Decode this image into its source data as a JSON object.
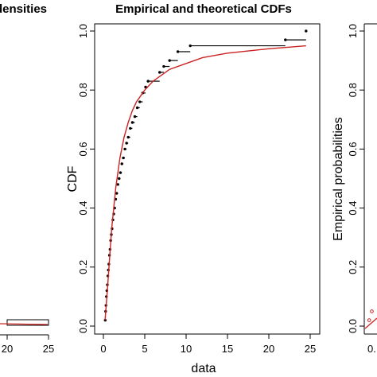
{
  "chart_data": [
    {
      "type": "histogram",
      "title": "densities",
      "xlabel": "",
      "ylabel": "",
      "xticks": [
        20,
        25
      ],
      "bars": [
        {
          "x0": 20,
          "x1": 25,
          "height": 1
        }
      ],
      "fitted_curve_color": "#cc2222"
    },
    {
      "type": "line",
      "title": "Empirical and theoretical CDFs",
      "xlabel": "data",
      "ylabel": "CDF",
      "xlim": [
        -0.9,
        25
      ],
      "ylim": [
        0,
        1
      ],
      "xticks": [
        0,
        5,
        10,
        15,
        20,
        25
      ],
      "yticks": [
        "0.0",
        "0.2",
        "0.4",
        "0.6",
        "0.8",
        "1.0"
      ],
      "grid": false,
      "empirical": {
        "color": "#000000",
        "x": [
          0.22,
          0.27,
          0.31,
          0.36,
          0.42,
          0.48,
          0.54,
          0.6,
          0.66,
          0.73,
          0.8,
          0.88,
          0.96,
          1.05,
          1.15,
          1.25,
          1.36,
          1.48,
          1.61,
          1.75,
          1.9,
          2.06,
          2.23,
          2.41,
          2.6,
          2.8,
          3.0,
          3.25,
          3.5,
          3.8,
          4.1,
          4.4,
          4.75,
          5.1,
          5.4,
          6.8,
          7.3,
          8.0,
          9.0,
          10.5,
          22.0,
          24.5
        ],
        "y": [
          0.02,
          0.05,
          0.07,
          0.1,
          0.12,
          0.14,
          0.17,
          0.19,
          0.21,
          0.24,
          0.26,
          0.29,
          0.31,
          0.33,
          0.36,
          0.38,
          0.4,
          0.43,
          0.45,
          0.48,
          0.5,
          0.52,
          0.55,
          0.57,
          0.6,
          0.62,
          0.64,
          0.67,
          0.69,
          0.71,
          0.74,
          0.76,
          0.79,
          0.81,
          0.83,
          0.86,
          0.88,
          0.9,
          0.93,
          0.95,
          0.97,
          1.0
        ]
      },
      "theoretical": {
        "color": "#cc2222",
        "x": [
          0.2,
          0.5,
          1.0,
          1.5,
          2.0,
          2.5,
          3.0,
          3.5,
          4.0,
          5.0,
          6.0,
          7.0,
          8.0,
          10.0,
          12.0,
          15.0,
          20.0,
          24.5
        ],
        "y": [
          0.02,
          0.13,
          0.33,
          0.47,
          0.57,
          0.64,
          0.69,
          0.73,
          0.76,
          0.8,
          0.83,
          0.85,
          0.87,
          0.89,
          0.91,
          0.925,
          0.94,
          0.95
        ]
      }
    },
    {
      "type": "scatter",
      "title": "",
      "xlabel": "",
      "ylabel": "Empirical probabilities",
      "ylim": [
        0,
        1
      ],
      "yticks": [
        "0.0",
        "0.2",
        "0.4",
        "0.6",
        "0.8",
        "1.0"
      ],
      "xtick_fragment": "0.",
      "points": [
        {
          "x": 0.02,
          "y": 0.02,
          "color": "#cc2222"
        },
        {
          "x": 0.05,
          "y": 0.05,
          "color": "#cc2222"
        }
      ]
    }
  ]
}
